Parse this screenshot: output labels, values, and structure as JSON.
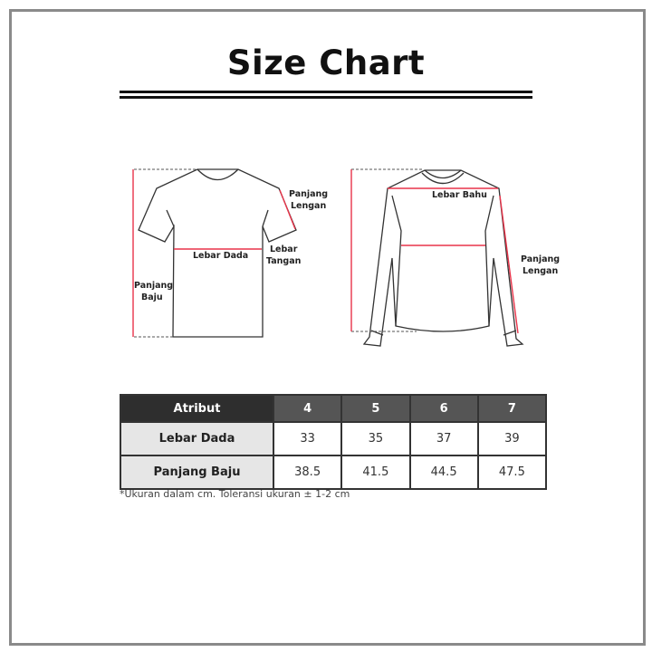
{
  "title": "Size Chart",
  "diagram": {
    "tshirt_labels": {
      "sleeve_length": [
        "Panjang",
        "Lengan"
      ],
      "chest_width": "Lebar Dada",
      "arm_width": [
        "Lebar",
        "Tangan"
      ],
      "body_length": [
        "Panjang",
        "Baju"
      ]
    },
    "longsleeve_labels": {
      "shoulder_width": "Lebar Bahu",
      "sleeve_length": [
        "Panjang",
        "Lengan"
      ]
    },
    "measure_color": "#e8344a"
  },
  "table": {
    "headers": [
      "Atribut",
      "4",
      "5",
      "6",
      "7"
    ],
    "rows": [
      {
        "label": "Lebar Dada",
        "values": [
          "33",
          "35",
          "37",
          "39"
        ]
      },
      {
        "label": "Panjang Baju",
        "values": [
          "38.5",
          "41.5",
          "44.5",
          "47.5"
        ]
      }
    ]
  },
  "note": "*Ukuran dalam cm. Toleransi ukuran ± 1-2 cm"
}
